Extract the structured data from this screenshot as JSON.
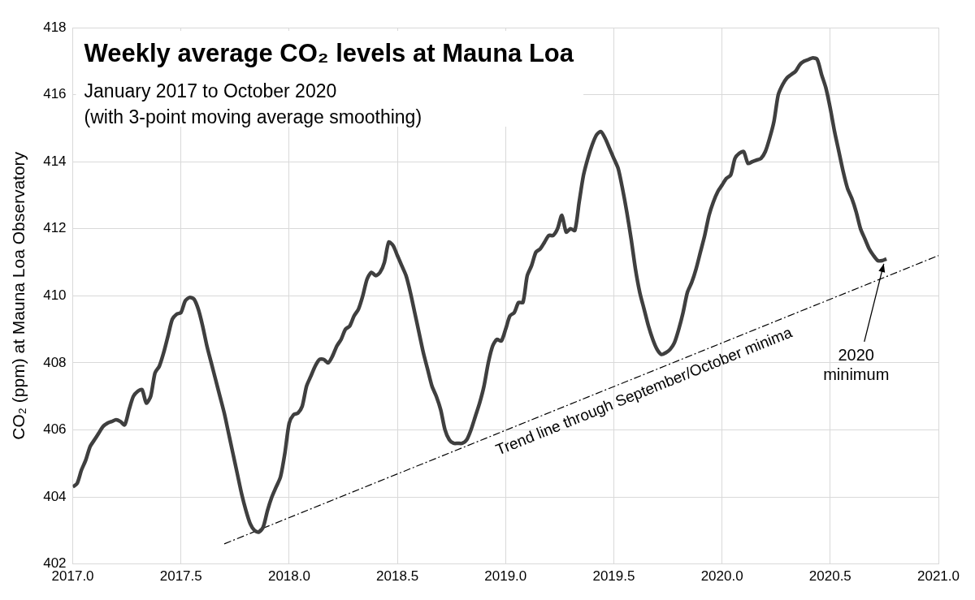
{
  "chart_data": {
    "type": "line",
    "title": "Weekly average CO₂ levels at Mauna Loa",
    "subtitle": [
      "January 2017 to October 2020",
      "(with 3-point moving average smoothing)"
    ],
    "y_label": "CO₂ (ppm) at Mauna Loa Observatory",
    "x": [
      2017.0,
      2017.02,
      2017.04,
      2017.06,
      2017.08,
      2017.1,
      2017.12,
      2017.14,
      2017.16,
      2017.18,
      2017.2,
      2017.22,
      2017.24,
      2017.26,
      2017.28,
      2017.3,
      2017.32,
      2017.34,
      2017.36,
      2017.38,
      2017.4,
      2017.42,
      2017.44,
      2017.46,
      2017.48,
      2017.5,
      2017.52,
      2017.54,
      2017.56,
      2017.58,
      2017.6,
      2017.62,
      2017.64,
      2017.66,
      2017.68,
      2017.7,
      2017.72,
      2017.74,
      2017.76,
      2017.78,
      2017.8,
      2017.82,
      2017.84,
      2017.86,
      2017.88,
      2017.9,
      2017.92,
      2017.94,
      2017.96,
      2017.98,
      2018.0,
      2018.02,
      2018.04,
      2018.06,
      2018.08,
      2018.1,
      2018.12,
      2018.14,
      2018.16,
      2018.18,
      2018.2,
      2018.22,
      2018.24,
      2018.26,
      2018.28,
      2018.3,
      2018.32,
      2018.34,
      2018.36,
      2018.38,
      2018.4,
      2018.42,
      2018.44,
      2018.46,
      2018.48,
      2018.5,
      2018.52,
      2018.54,
      2018.56,
      2018.58,
      2018.6,
      2018.62,
      2018.64,
      2018.66,
      2018.68,
      2018.7,
      2018.72,
      2018.74,
      2018.76,
      2018.78,
      2018.8,
      2018.82,
      2018.84,
      2018.86,
      2018.88,
      2018.9,
      2018.92,
      2018.94,
      2018.96,
      2018.98,
      2019.0,
      2019.02,
      2019.04,
      2019.06,
      2019.08,
      2019.1,
      2019.12,
      2019.14,
      2019.16,
      2019.18,
      2019.2,
      2019.22,
      2019.24,
      2019.26,
      2019.28,
      2019.3,
      2019.32,
      2019.34,
      2019.36,
      2019.38,
      2019.4,
      2019.42,
      2019.44,
      2019.46,
      2019.48,
      2019.5,
      2019.52,
      2019.54,
      2019.56,
      2019.58,
      2019.6,
      2019.62,
      2019.64,
      2019.66,
      2019.68,
      2019.7,
      2019.72,
      2019.74,
      2019.76,
      2019.78,
      2019.8,
      2019.82,
      2019.84,
      2019.86,
      2019.88,
      2019.9,
      2019.92,
      2019.94,
      2019.96,
      2019.98,
      2020.0,
      2020.02,
      2020.04,
      2020.06,
      2020.08,
      2020.1,
      2020.12,
      2020.14,
      2020.16,
      2020.18,
      2020.2,
      2020.22,
      2020.24,
      2020.26,
      2020.28,
      2020.3,
      2020.32,
      2020.34,
      2020.36,
      2020.38,
      2020.4,
      2020.42,
      2020.44,
      2020.46,
      2020.48,
      2020.5,
      2020.52,
      2020.54,
      2020.56,
      2020.58,
      2020.6,
      2020.62,
      2020.64,
      2020.66,
      2020.68,
      2020.7,
      2020.72,
      2020.74,
      2020.76
    ],
    "series": [
      {
        "color": "#3f3f3f",
        "values": [
          404.3,
          404.4,
          404.8,
          405.1,
          405.5,
          405.7,
          405.9,
          406.1,
          406.2,
          406.25,
          406.3,
          406.25,
          406.15,
          406.6,
          407.0,
          407.15,
          407.2,
          406.8,
          407.0,
          407.7,
          407.9,
          408.3,
          408.8,
          409.3,
          409.45,
          409.5,
          409.85,
          409.95,
          409.9,
          409.6,
          409.1,
          408.5,
          408.0,
          407.5,
          407.0,
          406.5,
          405.9,
          405.3,
          404.7,
          404.1,
          403.6,
          403.2,
          403.0,
          402.95,
          403.1,
          403.6,
          404.0,
          404.3,
          404.6,
          405.3,
          406.2,
          406.45,
          406.5,
          406.7,
          407.3,
          407.6,
          407.9,
          408.1,
          408.1,
          408.0,
          408.2,
          408.5,
          408.7,
          409.0,
          409.1,
          409.4,
          409.6,
          410.0,
          410.5,
          410.7,
          410.6,
          410.7,
          411.0,
          411.6,
          411.5,
          411.2,
          410.9,
          410.6,
          410.1,
          409.5,
          408.9,
          408.3,
          407.8,
          407.3,
          407.0,
          406.6,
          406.0,
          405.7,
          405.6,
          405.6,
          405.6,
          405.7,
          406.0,
          406.4,
          406.8,
          407.3,
          408.0,
          408.5,
          408.7,
          408.65,
          409.0,
          409.4,
          409.5,
          409.8,
          409.8,
          410.6,
          410.9,
          411.3,
          411.4,
          411.6,
          411.8,
          411.8,
          412.0,
          412.4,
          411.9,
          412.0,
          411.95,
          412.8,
          413.6,
          414.1,
          414.5,
          414.8,
          414.9,
          414.7,
          414.4,
          414.1,
          413.8,
          413.2,
          412.5,
          411.7,
          410.8,
          410.1,
          409.6,
          409.1,
          408.7,
          408.4,
          408.25,
          408.3,
          408.4,
          408.6,
          409.0,
          409.5,
          410.1,
          410.4,
          410.8,
          411.3,
          411.8,
          412.4,
          412.8,
          413.1,
          413.3,
          413.5,
          413.6,
          414.1,
          414.25,
          414.3,
          413.95,
          414.0,
          414.05,
          414.1,
          414.3,
          414.7,
          415.2,
          416.0,
          416.3,
          416.5,
          416.6,
          416.7,
          416.9,
          417.0,
          417.05,
          417.1,
          417.05,
          416.6,
          416.2,
          415.6,
          414.9,
          414.3,
          413.7,
          413.2,
          412.9,
          412.5,
          412.0,
          411.7,
          411.4,
          411.2,
          411.05,
          411.05,
          411.1
        ]
      }
    ],
    "xlim": [
      2017,
      2021
    ],
    "xticks": [
      {
        "value": 2017,
        "label": "2017.0"
      },
      {
        "value": 2017.5,
        "label": "2017.5"
      },
      {
        "value": 2018,
        "label": "2018.0"
      },
      {
        "value": 2018.5,
        "label": "2018.5"
      },
      {
        "value": 2019,
        "label": "2019.0"
      },
      {
        "value": 2019.5,
        "label": "2019.5"
      },
      {
        "value": 2020,
        "label": "2020.0"
      },
      {
        "value": 2020.5,
        "label": "2020.5"
      },
      {
        "value": 2021,
        "label": "2021.0"
      }
    ],
    "ylim": [
      402,
      418
    ],
    "yticks": [
      402,
      404,
      406,
      408,
      410,
      412,
      414,
      416,
      418
    ],
    "grid": true,
    "annotations": [
      {
        "text": "Trend line through September/October minima",
        "x": [
          2017.7,
          2021.0
        ],
        "y": [
          402.6,
          411.2
        ],
        "line_style": "dashdot",
        "color": "#000000"
      },
      {
        "text": "2020 minimum",
        "x": 2020.74,
        "y": 411.05
      }
    ]
  }
}
